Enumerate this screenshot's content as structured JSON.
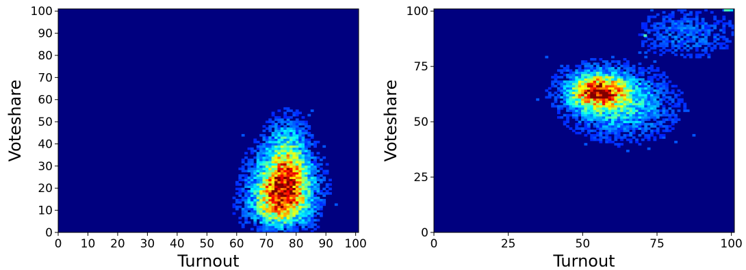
{
  "chart_data": [
    {
      "type": "heatmap",
      "xlabel": "Turnout",
      "ylabel": "Voteshare",
      "xlim": [
        0,
        101
      ],
      "ylim": [
        0,
        101
      ],
      "xticks": [
        0,
        10,
        20,
        30,
        40,
        50,
        60,
        70,
        80,
        90,
        100
      ],
      "yticks": [
        0,
        10,
        20,
        30,
        40,
        50,
        60,
        70,
        80,
        90,
        100
      ],
      "colormap": "jet",
      "background_color": "#00007f",
      "bins": 100,
      "density_peaks": [
        {
          "x": 76,
          "y": 22,
          "sx": 5.5,
          "sy": 9,
          "weight": 1.0
        },
        {
          "x": 74,
          "y": 12,
          "sx": 6,
          "sy": 6,
          "weight": 0.45
        },
        {
          "x": 77,
          "y": 38,
          "sx": 4,
          "sy": 8,
          "weight": 0.3
        }
      ],
      "grid": false,
      "legend": "none"
    },
    {
      "type": "heatmap",
      "xlabel": "Turnout",
      "ylabel": "Voteshare",
      "xlim": [
        0,
        101
      ],
      "ylim": [
        0,
        101
      ],
      "xticks": [
        0,
        25,
        50,
        75,
        100
      ],
      "yticks": [
        0,
        25,
        50,
        75,
        100
      ],
      "colormap": "jet",
      "background_color": "#00007f",
      "bins": 100,
      "density_peaks": [
        {
          "x": 55,
          "y": 64,
          "sx": 6,
          "sy": 5,
          "weight": 1.0
        },
        {
          "x": 63,
          "y": 58,
          "sx": 9,
          "sy": 8,
          "weight": 0.35
        },
        {
          "x": 85,
          "y": 90,
          "sx": 9,
          "sy": 6,
          "weight": 0.12
        }
      ],
      "hot_cells": [
        {
          "x": 98,
          "y": 100.5,
          "value": 0.45
        },
        {
          "x": 99,
          "y": 100.5,
          "value": 0.45
        },
        {
          "x": 100,
          "y": 100.5,
          "value": 0.35
        },
        {
          "x": 71,
          "y": 89,
          "value": 0.45
        }
      ],
      "grid": false,
      "legend": "none"
    }
  ]
}
